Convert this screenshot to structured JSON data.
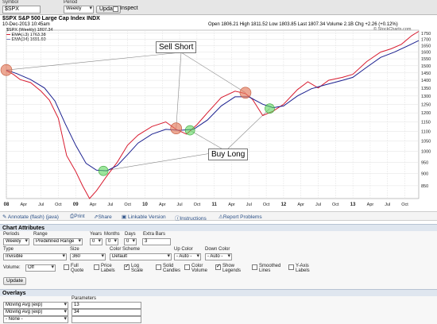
{
  "top_bar": {
    "symbol_label": "Symbol",
    "symbol_value": "$SPX",
    "period_label": "Period",
    "period_value": "Weekly",
    "update_label": "Update",
    "inspect_label": "Inspect"
  },
  "chart": {
    "title": "$SPX S&P 500 Large Cap Index INDX",
    "date": "10-Dec-2013 10:45am",
    "series_label": "$SPX (Weekly) 1807.34",
    "ema13_label": "EMA(13) 1763.38",
    "ema34_label": "EMA(34) 1691.60",
    "ohlc_line": "Open 1806.21  High 1811.52  Low 1803.85  Last 1807.34  Volume 2.1B  Chg +2.26 (+0.12%)",
    "watermark": "© StockCharts.com",
    "annotation_sell": "Sell Short",
    "annotation_buy": "Buy Long",
    "colors": {
      "ema13": "#d81b2f",
      "ema34": "#1a1f8f",
      "sell_marker": "#e47a5a",
      "buy_marker": "#5cd65c"
    }
  },
  "chart_data": {
    "type": "line",
    "title": "$SPX S&P 500 Large Cap Index INDX",
    "x_ticks": [
      "08",
      "Apr",
      "Jul",
      "Oct",
      "09",
      "Apr",
      "Jul",
      "Oct",
      "10",
      "Apr",
      "Jul",
      "Oct",
      "11",
      "Apr",
      "Jul",
      "Oct",
      "12",
      "Apr",
      "Jul",
      "Oct",
      "13",
      "Apr",
      "Jul",
      "Oct"
    ],
    "y_ticks": [
      850,
      900,
      950,
      1000,
      1050,
      1100,
      1150,
      1200,
      1250,
      1300,
      1350,
      1400,
      1450,
      1500,
      1550,
      1600,
      1650,
      1700,
      1750
    ],
    "ylim": [
      800,
      1775
    ],
    "x_range_years": [
      2008.0,
      2013.95
    ],
    "series": [
      {
        "name": "EMA(13)",
        "points": [
          [
            2008.0,
            1465
          ],
          [
            2008.1,
            1440
          ],
          [
            2008.2,
            1405
          ],
          [
            2008.35,
            1385
          ],
          [
            2008.5,
            1330
          ],
          [
            2008.62,
            1275
          ],
          [
            2008.75,
            1170
          ],
          [
            2008.87,
            980
          ],
          [
            2009.0,
            910
          ],
          [
            2009.1,
            850
          ],
          [
            2009.2,
            800
          ],
          [
            2009.3,
            830
          ],
          [
            2009.45,
            890
          ],
          [
            2009.6,
            950
          ],
          [
            2009.75,
            1030
          ],
          [
            2009.9,
            1080
          ],
          [
            2010.1,
            1125
          ],
          [
            2010.3,
            1150
          ],
          [
            2010.45,
            1110
          ],
          [
            2010.6,
            1085
          ],
          [
            2010.75,
            1135
          ],
          [
            2010.9,
            1200
          ],
          [
            2011.1,
            1290
          ],
          [
            2011.3,
            1330
          ],
          [
            2011.45,
            1315
          ],
          [
            2011.55,
            1280
          ],
          [
            2011.7,
            1185
          ],
          [
            2011.85,
            1210
          ],
          [
            2012.0,
            1250
          ],
          [
            2012.2,
            1340
          ],
          [
            2012.35,
            1390
          ],
          [
            2012.5,
            1350
          ],
          [
            2012.65,
            1400
          ],
          [
            2012.85,
            1420
          ],
          [
            2013.0,
            1440
          ],
          [
            2013.2,
            1530
          ],
          [
            2013.4,
            1600
          ],
          [
            2013.55,
            1625
          ],
          [
            2013.7,
            1660
          ],
          [
            2013.85,
            1730
          ],
          [
            2013.95,
            1765
          ]
        ]
      },
      {
        "name": "EMA(34)",
        "points": [
          [
            2008.0,
            1470
          ],
          [
            2008.15,
            1445
          ],
          [
            2008.35,
            1405
          ],
          [
            2008.55,
            1350
          ],
          [
            2008.7,
            1270
          ],
          [
            2008.85,
            1140
          ],
          [
            2009.0,
            1030
          ],
          [
            2009.15,
            945
          ],
          [
            2009.3,
            915
          ],
          [
            2009.45,
            912
          ],
          [
            2009.6,
            935
          ],
          [
            2009.75,
            985
          ],
          [
            2009.9,
            1040
          ],
          [
            2010.1,
            1085
          ],
          [
            2010.3,
            1110
          ],
          [
            2010.5,
            1105
          ],
          [
            2010.7,
            1110
          ],
          [
            2010.9,
            1160
          ],
          [
            2011.1,
            1240
          ],
          [
            2011.3,
            1295
          ],
          [
            2011.5,
            1295
          ],
          [
            2011.7,
            1250
          ],
          [
            2011.85,
            1230
          ],
          [
            2012.0,
            1240
          ],
          [
            2012.2,
            1300
          ],
          [
            2012.4,
            1345
          ],
          [
            2012.6,
            1370
          ],
          [
            2012.85,
            1400
          ],
          [
            2013.0,
            1420
          ],
          [
            2013.2,
            1490
          ],
          [
            2013.4,
            1560
          ],
          [
            2013.6,
            1600
          ],
          [
            2013.8,
            1650
          ],
          [
            2013.95,
            1690
          ]
        ]
      }
    ],
    "sell_markers": [
      [
        2008.0,
        1470
      ],
      [
        2010.45,
        1115
      ],
      [
        2011.45,
        1320
      ]
    ],
    "buy_markers": [
      [
        2009.4,
        912
      ],
      [
        2010.65,
        1105
      ],
      [
        2011.8,
        1225
      ]
    ]
  },
  "toolbar": {
    "annotate": "Annotate (flash) (java)",
    "print": "Print",
    "share": "Share",
    "linkable": "Linkable Version",
    "instructions": "Instructions",
    "report": "Report Problems"
  },
  "attributes": {
    "header": "Chart Attributes",
    "periods_label": "Periods",
    "periods_value": "Weekly",
    "range_label": "Range",
    "range_value": "Predefined Range",
    "years_label": "Years",
    "years_value": "0",
    "months_label": "Months",
    "months_value": "0",
    "days_label": "Days",
    "days_value": "0",
    "extra_bars_label": "Extra Bars",
    "extra_bars_value": "3",
    "type_label": "Type",
    "type_value": "Invisible",
    "size_label": "Size",
    "size_value": "360",
    "scheme_label": "Color Scheme",
    "scheme_value": "Default",
    "up_color_label": "Up Color",
    "up_color_value": "- Auto -",
    "down_color_label": "Down Color",
    "down_color_value": "- Auto -",
    "volume_label": "Volume:",
    "volume_value": "Off",
    "checkboxes": [
      {
        "label": "Full Quote",
        "checked": false
      },
      {
        "label": "Price Labels",
        "checked": false
      },
      {
        "label": "Log Scale",
        "checked": true
      },
      {
        "label": "Solid Candles",
        "checked": false
      },
      {
        "label": "Color Volume",
        "checked": false
      },
      {
        "label": "Show Legends",
        "checked": true
      },
      {
        "label": "Smoothed Lines",
        "checked": false
      },
      {
        "label": "Y-Axis Labels",
        "checked": false
      }
    ],
    "update_label": "Update"
  },
  "overlays": {
    "header": "Overlays",
    "parameters_label": "Parameters",
    "rows": [
      {
        "type": "Moving Avg (exp)",
        "param": "13"
      },
      {
        "type": "Moving Avg (exp)",
        "param": "34"
      },
      {
        "type": "- None -",
        "param": ""
      }
    ]
  }
}
